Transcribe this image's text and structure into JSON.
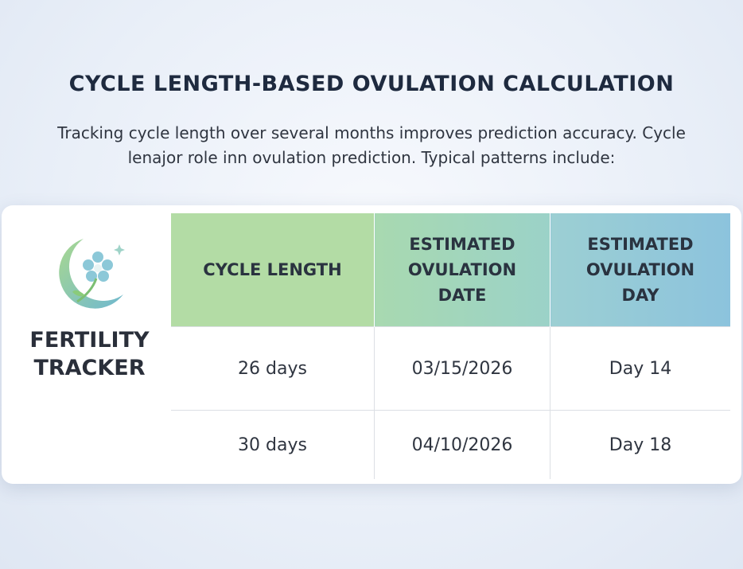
{
  "header": {
    "title": "CYCLE LENGTH-BASED OVULATION CALCULATION",
    "intro_lines": [
      "Tracking cycle length over several months improves prediction accuracy. Cycle",
      "lenajor role inn ovulation prediction. Typical patterns include:"
    ]
  },
  "brand": {
    "name": "FERTILITY TRACKER"
  },
  "table": {
    "columns": [
      "CYCLE LENGTH",
      "ESTIMATED OVULATION DATE",
      "ESTIMATED OVULATION DAY"
    ],
    "rows": [
      [
        "26 days",
        "03/15/2026",
        "Day 14"
      ],
      [
        "30 days",
        "04/10/2026",
        "Day 18"
      ]
    ]
  }
}
